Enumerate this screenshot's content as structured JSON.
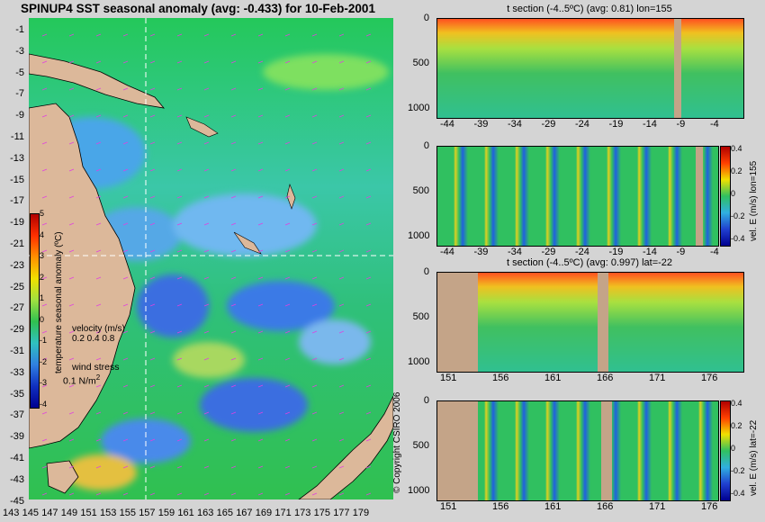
{
  "map": {
    "title": "SPINUP4 SST seasonal anomaly (avg: -0.433) for 10-Feb-2001",
    "lat_ticks": [
      "-1",
      "-3",
      "-5",
      "-7",
      "-9",
      "-11",
      "-13",
      "-15",
      "-17",
      "-19",
      "-21",
      "-23",
      "-25",
      "-27",
      "-29",
      "-31",
      "-33",
      "-35",
      "-37",
      "-39",
      "-41",
      "-43",
      "-45"
    ],
    "lon_ticks": [
      "143",
      "145",
      "147",
      "149",
      "151",
      "153",
      "155",
      "157",
      "159",
      "161",
      "163",
      "165",
      "167",
      "169",
      "171",
      "173",
      "175",
      "177",
      "179"
    ],
    "colorbar": {
      "ticks": [
        "5",
        "4",
        "3",
        "2",
        "1",
        "0",
        "-1",
        "-2",
        "-3",
        "-4"
      ],
      "label": "temperature seasonal anomaly (ºC)"
    },
    "velocity_legend": {
      "title": "velocity (m/s)",
      "values": "0.2 0.4 0.8"
    },
    "wind_legend": {
      "title": "wind stress",
      "value": "0.1 N/m",
      "sup": "2"
    }
  },
  "panels": [
    {
      "title": "t section (-4..5ºC) (avg: 0.81) lon=155",
      "y_ticks": [
        "0",
        "500",
        "1000"
      ],
      "x_ticks": [
        "-44",
        "-39",
        "-34",
        "-29",
        "-24",
        "-19",
        "-14",
        "-9",
        "-4"
      ],
      "colorbar": null
    },
    {
      "title": "",
      "y_ticks": [
        "0",
        "500",
        "1000"
      ],
      "x_ticks": [
        "-44",
        "-39",
        "-34",
        "-29",
        "-24",
        "-19",
        "-14",
        "-9",
        "-4"
      ],
      "colorbar": {
        "ticks": [
          "0.4",
          "0.2",
          "0",
          "-0.2",
          "-0.4"
        ],
        "label": "vel. E (m/s) lon=155"
      }
    },
    {
      "title": "t section (-4..5ºC) (avg: 0.997) lat=-22",
      "y_ticks": [
        "0",
        "500",
        "1000"
      ],
      "x_ticks": [
        "151",
        "156",
        "161",
        "166",
        "171",
        "176"
      ],
      "colorbar": null
    },
    {
      "title": "",
      "y_ticks": [
        "0",
        "500",
        "1000"
      ],
      "x_ticks": [
        "151",
        "156",
        "161",
        "166",
        "171",
        "176"
      ],
      "colorbar": {
        "ticks": [
          "0.4",
          "0.2",
          "0",
          "-0.2",
          "-0.4"
        ],
        "label": "vel. E (m/s) lat=-22"
      }
    }
  ],
  "copyright": "© Copyright CSIRO 2006",
  "colors": {
    "background": "#d4d4d4",
    "land": "#dcb89a",
    "ocean": "#2fc05a",
    "dashed_line": "#ffffff"
  },
  "chart_data": [
    {
      "type": "heatmap",
      "title": "SPINUP4 SST seasonal anomaly (avg: -0.433) for 10-Feb-2001",
      "xlabel": "",
      "ylabel": "",
      "xlim": [
        142,
        180
      ],
      "ylim": [
        -45,
        0
      ],
      "value_range": [
        -4,
        5
      ],
      "crosshair": {
        "lon": 155,
        "lat": -22
      }
    },
    {
      "type": "heatmap",
      "title": "t section (-4..5ºC) (avg: 0.81) lon=155",
      "xlim": [
        -46,
        -1
      ],
      "ylim": [
        1050,
        0
      ],
      "value_range": [
        -4,
        5
      ]
    },
    {
      "type": "heatmap",
      "title": "",
      "xlim": [
        -46,
        -1
      ],
      "ylim": [
        1050,
        0
      ],
      "value_range": [
        -0.4,
        0.4
      ]
    },
    {
      "type": "heatmap",
      "title": "t section (-4..5ºC) (avg: 0.997) lat=-22",
      "xlim": [
        150,
        180
      ],
      "ylim": [
        1050,
        0
      ],
      "value_range": [
        -4,
        5
      ]
    },
    {
      "type": "heatmap",
      "title": "",
      "xlim": [
        150,
        180
      ],
      "ylim": [
        1050,
        0
      ],
      "value_range": [
        -0.4,
        0.4
      ]
    }
  ]
}
